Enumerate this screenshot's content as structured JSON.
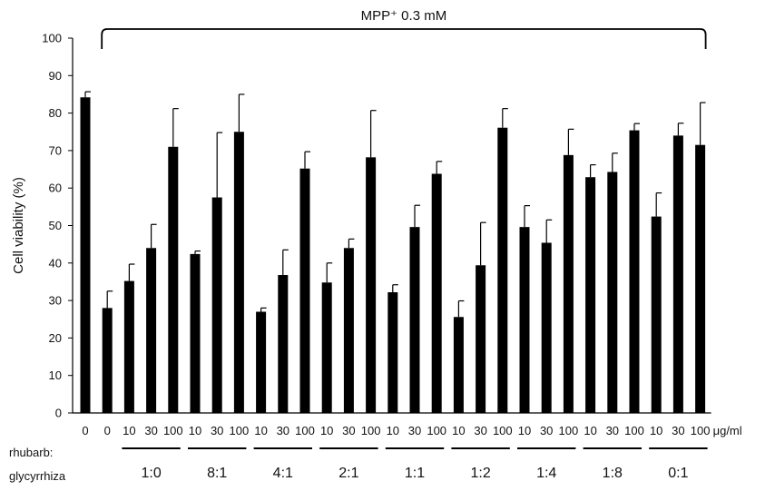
{
  "chart_data": {
    "type": "bar",
    "title": "MPP⁺ 0.3 mM",
    "ylabel": "Cell viability (%)",
    "xunit": "μg/ml",
    "ylim": [
      0,
      100
    ],
    "yticks": [
      0,
      10,
      20,
      30,
      40,
      50,
      60,
      70,
      80,
      90,
      100
    ],
    "grid": false,
    "legend": "none",
    "bar_color": "#000000",
    "group_label": [
      "rhubarb:",
      "glycyrrhiza"
    ],
    "categories": [
      "0",
      "0",
      "10",
      "30",
      "100",
      "10",
      "30",
      "100",
      "10",
      "30",
      "100",
      "10",
      "30",
      "100",
      "10",
      "30",
      "100",
      "10",
      "30",
      "100",
      "10",
      "30",
      "100",
      "10",
      "30",
      "100",
      "10",
      "30",
      "100"
    ],
    "values": [
      84.2,
      28.0,
      35.2,
      44.0,
      71.0,
      42.4,
      57.5,
      75.0,
      27.0,
      36.8,
      65.2,
      34.8,
      44.0,
      68.2,
      32.2,
      49.6,
      63.8,
      25.6,
      39.4,
      76.1,
      49.6,
      45.4,
      68.8,
      62.9,
      64.3,
      75.4,
      52.4,
      74.0,
      71.5
    ],
    "errors": [
      1.5,
      4.5,
      4.5,
      6.3,
      10.2,
      0.8,
      17.3,
      10.0,
      1.0,
      6.7,
      4.5,
      5.2,
      2.4,
      12.5,
      2.0,
      5.8,
      3.3,
      4.3,
      11.4,
      5.1,
      5.7,
      6.1,
      6.9,
      3.3,
      5.0,
      1.8,
      6.3,
      3.3,
      11.3
    ],
    "groups": [
      {
        "label": "1:0",
        "start": 2,
        "end": 4
      },
      {
        "label": "8:1",
        "start": 5,
        "end": 7
      },
      {
        "label": "4:1",
        "start": 8,
        "end": 10
      },
      {
        "label": "2:1",
        "start": 11,
        "end": 13
      },
      {
        "label": "1:1",
        "start": 14,
        "end": 16
      },
      {
        "label": "1:2",
        "start": 17,
        "end": 19
      },
      {
        "label": "1:4",
        "start": 20,
        "end": 22
      },
      {
        "label": "1:8",
        "start": 23,
        "end": 25
      },
      {
        "label": "0:1",
        "start": 26,
        "end": 28
      }
    ],
    "bracket": {
      "label": "MPP⁺ 0.3 mM",
      "start": 1,
      "end": 28
    }
  }
}
